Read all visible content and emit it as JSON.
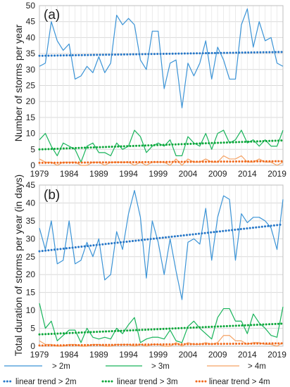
{
  "colors": {
    "s2m": "#3a93d6",
    "s3m": "#19b45b",
    "s4m": "#f5a264",
    "t2m": "#2878c8",
    "t3m": "#0fa83c",
    "t4m": "#f06a1e"
  },
  "legend": [
    {
      "key": "s2m",
      "label": "> 2m",
      "style": "solid"
    },
    {
      "key": "s3m",
      "label": "> 3m",
      "style": "solid"
    },
    {
      "key": "s4m",
      "label": "> 4m",
      "style": "solid"
    },
    {
      "key": "t2m",
      "label": "linear trend > 2m",
      "style": "dotted"
    },
    {
      "key": "t3m",
      "label": "linear trend > 3m",
      "style": "dotted"
    },
    {
      "key": "t4m",
      "label": "linear trend > 4m",
      "style": "dotted"
    }
  ],
  "chart_data": [
    {
      "type": "line",
      "tag": "(a)",
      "ylabel": "Number of storms per year",
      "xlim": [
        1979,
        2020
      ],
      "ylim": [
        0,
        50
      ],
      "yticks": [
        0,
        5,
        10,
        15,
        20,
        25,
        30,
        35,
        40,
        45,
        50
      ],
      "xticks": [
        1979,
        1984,
        1989,
        1994,
        1999,
        2004,
        2009,
        2014,
        2019
      ],
      "x": [
        1979,
        1980,
        1981,
        1982,
        1983,
        1984,
        1985,
        1986,
        1987,
        1988,
        1989,
        1990,
        1991,
        1992,
        1993,
        1994,
        1995,
        1996,
        1997,
        1998,
        1999,
        2000,
        2001,
        2002,
        2003,
        2004,
        2005,
        2006,
        2007,
        2008,
        2009,
        2010,
        2011,
        2012,
        2013,
        2014,
        2015,
        2016,
        2017,
        2018,
        2019,
        2020
      ],
      "series": [
        {
          "key": "s2m",
          "name": "> 2m",
          "values": [
            31,
            32,
            45,
            39,
            36,
            38,
            27,
            28,
            31,
            29,
            34,
            29,
            32,
            47,
            44,
            46,
            44,
            33,
            30,
            42,
            42,
            24,
            32,
            33,
            18,
            32,
            28,
            32,
            39,
            27,
            37,
            33,
            27,
            27,
            44,
            49,
            37,
            45,
            39,
            40,
            32,
            31
          ]
        },
        {
          "key": "s3m",
          "name": "> 3m",
          "values": [
            8,
            10,
            6,
            3,
            7,
            6,
            5,
            1,
            6,
            7,
            4,
            4,
            3,
            7,
            5,
            6,
            11,
            9,
            4,
            6,
            7,
            6,
            8,
            3,
            3,
            9,
            7,
            6,
            10,
            5,
            10,
            11,
            7,
            8,
            11,
            7,
            8,
            6,
            8,
            6,
            6,
            11
          ]
        },
        {
          "key": "s4m",
          "name": "> 4m",
          "values": [
            2,
            1,
            1,
            0,
            1,
            1,
            1,
            0,
            0,
            1,
            1,
            0,
            1,
            1,
            1,
            1,
            0,
            1,
            0,
            1,
            1,
            1,
            0,
            2,
            0,
            2,
            1,
            1,
            2,
            1,
            1,
            3,
            2,
            2,
            3,
            1,
            1,
            2,
            1,
            1,
            0,
            1
          ]
        }
      ],
      "trends": [
        {
          "key": "t2m",
          "name": "linear trend > 2m",
          "start": [
            1979,
            34.3
          ],
          "end": [
            2020,
            35.5
          ]
        },
        {
          "key": "t3m",
          "name": "linear trend > 3m",
          "start": [
            1979,
            5.0
          ],
          "end": [
            2020,
            7.8
          ]
        },
        {
          "key": "t4m",
          "name": "linear trend > 4m",
          "start": [
            1979,
            0.8
          ],
          "end": [
            2020,
            1.3
          ]
        }
      ]
    },
    {
      "type": "line",
      "tag": "(b)",
      "ylabel": "Total duration of storms per year (in days)",
      "xlim": [
        1979,
        2020
      ],
      "ylim": [
        0,
        45
      ],
      "yticks": [
        0,
        5,
        10,
        15,
        20,
        25,
        30,
        35,
        40,
        45
      ],
      "xticks": [
        1979,
        1984,
        1989,
        1994,
        1999,
        2004,
        2009,
        2014,
        2019
      ],
      "x": [
        1979,
        1980,
        1981,
        1982,
        1983,
        1984,
        1985,
        1986,
        1987,
        1988,
        1989,
        1990,
        1991,
        1992,
        1993,
        1994,
        1995,
        1996,
        1997,
        1998,
        1999,
        2000,
        2001,
        2002,
        2003,
        2004,
        2005,
        2006,
        2007,
        2008,
        2009,
        2010,
        2011,
        2012,
        2013,
        2014,
        2015,
        2016,
        2017,
        2018,
        2019,
        2020
      ],
      "series": [
        {
          "key": "s2m",
          "name": "> 2m",
          "values": [
            33,
            27,
            35,
            23,
            24,
            35,
            23,
            24,
            29,
            25,
            30,
            18.5,
            20,
            32,
            27,
            37,
            43.5,
            36,
            19,
            35,
            29,
            20,
            30,
            21,
            13,
            29,
            30,
            28.5,
            38.5,
            24,
            36,
            42,
            41,
            24,
            37,
            34.5,
            36,
            36,
            35,
            33,
            27,
            41
          ]
        },
        {
          "key": "s3m",
          "name": "> 3m",
          "values": [
            12,
            5,
            7,
            1.5,
            3,
            4.5,
            4.5,
            1,
            5,
            2.5,
            2,
            2.5,
            2,
            5,
            3.5,
            6,
            8,
            1,
            2,
            2.5,
            2.5,
            2,
            4.5,
            1.5,
            1,
            5.5,
            7,
            5,
            3.5,
            2,
            8,
            10.5,
            10.5,
            7,
            7,
            3.5,
            9,
            6.5,
            5,
            3,
            2.5,
            11
          ]
        },
        {
          "key": "s4m",
          "name": "> 4m",
          "values": [
            1.5,
            0.5,
            0.5,
            0,
            0,
            0.5,
            0.5,
            0,
            0,
            0.5,
            0.5,
            0,
            0,
            0.5,
            0.5,
            0.5,
            0,
            0.5,
            0,
            0.5,
            0.5,
            0,
            0,
            1,
            0,
            1,
            0.5,
            0.5,
            1,
            0.5,
            1,
            3,
            3,
            1.5,
            1.5,
            0.5,
            1,
            1,
            0.5,
            0.5,
            0,
            1
          ]
        }
      ],
      "trends": [
        {
          "key": "t2m",
          "name": "linear trend > 2m",
          "start": [
            1979,
            26.5
          ],
          "end": [
            2020,
            34.0
          ]
        },
        {
          "key": "t3m",
          "name": "linear trend > 3m",
          "start": [
            1979,
            3.3
          ],
          "end": [
            2020,
            6.3
          ]
        },
        {
          "key": "t4m",
          "name": "linear trend > 4m",
          "start": [
            1979,
            0.2
          ],
          "end": [
            2020,
            0.8
          ]
        }
      ]
    }
  ]
}
